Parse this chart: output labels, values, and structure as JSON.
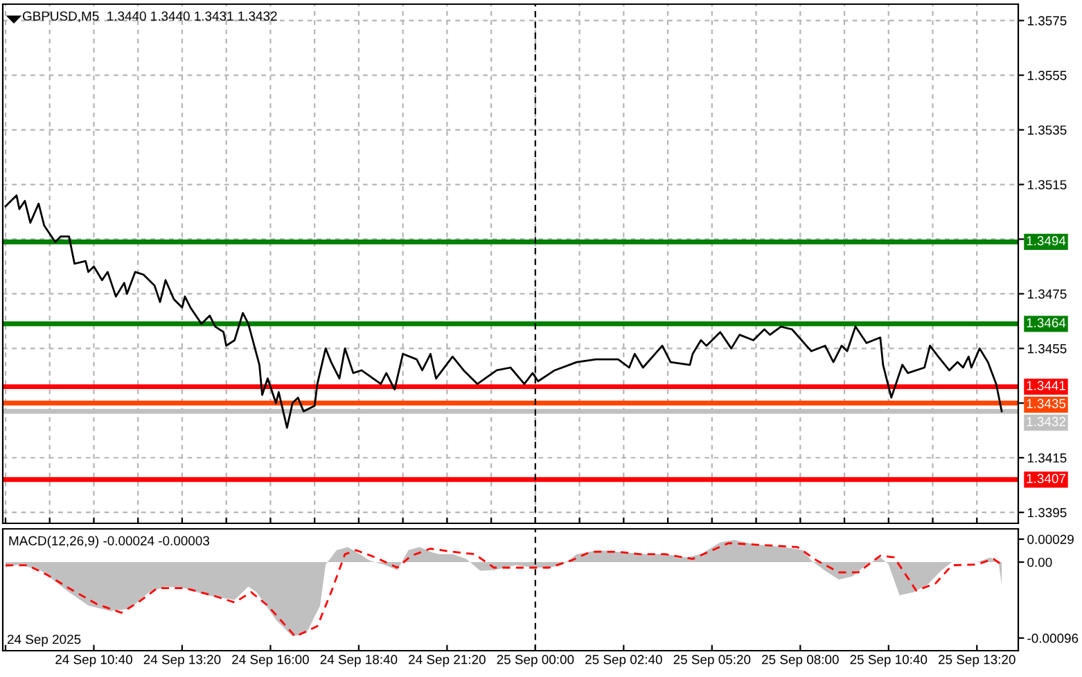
{
  "chart_data": [
    {
      "type": "line",
      "title": "GBPUSD,M5  1.3440 1.3440 1.3431 1.3432",
      "series": [
        {
          "color": "#000000",
          "x": [
            "2025-09-24T08:00",
            "2025-09-24T08:20",
            "2025-09-24T08:25",
            "2025-09-24T08:35",
            "2025-09-24T08:45",
            "2025-09-24T09:00",
            "2025-09-24T09:10",
            "2025-09-24T09:30",
            "2025-09-24T09:40",
            "2025-09-24T09:55",
            "2025-09-24T10:05",
            "2025-09-24T10:25",
            "2025-09-24T10:30",
            "2025-09-24T10:40",
            "2025-09-24T10:55",
            "2025-09-24T11:05",
            "2025-09-24T11:20",
            "2025-09-24T11:35",
            "2025-09-24T11:40",
            "2025-09-24T11:55",
            "2025-09-24T12:10",
            "2025-09-24T12:30",
            "2025-09-24T12:40",
            "2025-09-24T12:50",
            "2025-09-24T13:05",
            "2025-09-24T13:20",
            "2025-09-24T13:25",
            "2025-09-24T13:35",
            "2025-09-24T13:55",
            "2025-09-24T14:10",
            "2025-09-24T14:20",
            "2025-09-24T14:35",
            "2025-09-24T14:40",
            "2025-09-24T14:55",
            "2025-09-24T15:10",
            "2025-09-24T15:20",
            "2025-09-24T15:40",
            "2025-09-24T15:45",
            "2025-09-24T15:55",
            "2025-09-24T16:10",
            "2025-09-24T16:15",
            "2025-09-24T16:30",
            "2025-09-24T16:40",
            "2025-09-24T16:50",
            "2025-09-24T17:00",
            "2025-09-24T17:20",
            "2025-09-24T17:25",
            "2025-09-24T17:40",
            "2025-09-24T17:50",
            "2025-09-24T18:05",
            "2025-09-24T18:15",
            "2025-09-24T18:30",
            "2025-09-24T18:45",
            "2025-09-24T19:20",
            "2025-09-24T19:30",
            "2025-09-24T19:45",
            "2025-09-24T20:00",
            "2025-09-24T20:25",
            "2025-09-24T20:35",
            "2025-09-24T20:50",
            "2025-09-24T21:00",
            "2025-09-24T21:30",
            "2025-09-24T21:50",
            "2025-09-24T22:15",
            "2025-09-24T22:50",
            "2025-09-24T23:15",
            "2025-09-24T23:40",
            "2025-09-24T23:55",
            "2025-09-25T00:05",
            "2025-09-25T00:35",
            "2025-09-25T01:15",
            "2025-09-25T01:50",
            "2025-09-25T02:30",
            "2025-09-25T02:50",
            "2025-09-25T03:00",
            "2025-09-25T03:15",
            "2025-09-25T03:50",
            "2025-09-25T04:05",
            "2025-09-25T04:40",
            "2025-09-25T04:45",
            "2025-09-25T05:00",
            "2025-09-25T05:10",
            "2025-09-25T05:35",
            "2025-09-25T05:55",
            "2025-09-25T06:10",
            "2025-09-25T06:35",
            "2025-09-25T06:55",
            "2025-09-25T07:05",
            "2025-09-25T07:25",
            "2025-09-25T07:45",
            "2025-09-25T08:20",
            "2025-09-25T08:45",
            "2025-09-25T09:00",
            "2025-09-25T09:15",
            "2025-09-25T09:25",
            "2025-09-25T09:40",
            "2025-09-25T10:00",
            "2025-09-25T10:25",
            "2025-09-25T10:30",
            "2025-09-25T10:45",
            "2025-09-25T11:05",
            "2025-09-25T11:15",
            "2025-09-25T11:45",
            "2025-09-25T11:55",
            "2025-09-25T12:10",
            "2025-09-25T12:30",
            "2025-09-25T12:45",
            "2025-09-25T12:55",
            "2025-09-25T13:05",
            "2025-09-25T13:10",
            "2025-09-25T13:25",
            "2025-09-25T13:40",
            "2025-09-25T13:55",
            "2025-09-25T14:05"
          ],
          "values": [
            1.3507,
            1.3511,
            1.3506,
            1.3509,
            1.3501,
            1.3508,
            1.35,
            1.3494,
            1.3496,
            1.3496,
            1.3486,
            1.3487,
            1.3483,
            1.3485,
            1.348,
            1.3483,
            1.3474,
            1.3479,
            1.3475,
            1.3483,
            1.3482,
            1.3478,
            1.3472,
            1.348,
            1.3473,
            1.347,
            1.3474,
            1.347,
            1.3464,
            1.3467,
            1.3463,
            1.3461,
            1.3456,
            1.3458,
            1.3468,
            1.3464,
            1.3449,
            1.3438,
            1.3444,
            1.3435,
            1.3439,
            1.3426,
            1.3435,
            1.3437,
            1.3432,
            1.3434,
            1.3442,
            1.3455,
            1.345,
            1.3444,
            1.3455,
            1.3446,
            1.3447,
            1.3442,
            1.3446,
            1.344,
            1.3453,
            1.3451,
            1.3447,
            1.3453,
            1.3444,
            1.3452,
            1.3447,
            1.3442,
            1.3447,
            1.3448,
            1.3442,
            1.3446,
            1.3443,
            1.3447,
            1.345,
            1.3451,
            1.3451,
            1.3448,
            1.3453,
            1.3448,
            1.3456,
            1.345,
            1.3449,
            1.3453,
            1.3458,
            1.3456,
            1.3461,
            1.3455,
            1.346,
            1.3458,
            1.3462,
            1.346,
            1.3463,
            1.3462,
            1.3454,
            1.3456,
            1.345,
            1.3456,
            1.3454,
            1.3463,
            1.3457,
            1.3459,
            1.3449,
            1.3437,
            1.3449,
            1.3446,
            1.3448,
            1.3456,
            1.3452,
            1.3447,
            1.345,
            1.3448,
            1.3452,
            1.3448,
            1.3455,
            1.345,
            1.3442,
            1.3432
          ]
        }
      ],
      "xlim": [
        "2025-09-24T07:55",
        "2025-09-25T14:35"
      ],
      "xticks": [
        {
          "value": "2025-09-24T08:00",
          "label": null
        },
        {
          "value": "2025-09-24T09:20",
          "label": null
        },
        {
          "value": "2025-09-24T10:40",
          "label": null
        },
        {
          "value": "2025-09-24T12:00",
          "label": null
        },
        {
          "value": "2025-09-24T13:20",
          "label": null
        },
        {
          "value": "2025-09-24T14:40",
          "label": null
        },
        {
          "value": "2025-09-24T16:00",
          "label": null
        },
        {
          "value": "2025-09-24T17:20",
          "label": null
        },
        {
          "value": "2025-09-24T18:40",
          "label": null
        },
        {
          "value": "2025-09-24T20:00",
          "label": null
        },
        {
          "value": "2025-09-24T21:20",
          "label": null
        },
        {
          "value": "2025-09-24T22:40",
          "label": null
        },
        {
          "value": "2025-09-25T00:00",
          "label": null
        },
        {
          "value": "2025-09-25T01:20",
          "label": null
        },
        {
          "value": "2025-09-25T02:40",
          "label": null
        },
        {
          "value": "2025-09-25T04:00",
          "label": null
        },
        {
          "value": "2025-09-25T05:20",
          "label": null
        },
        {
          "value": "2025-09-25T06:40",
          "label": null
        },
        {
          "value": "2025-09-25T08:00",
          "label": null
        },
        {
          "value": "2025-09-25T09:20",
          "label": null
        },
        {
          "value": "2025-09-25T10:40",
          "label": null
        },
        {
          "value": "2025-09-25T12:00",
          "label": null
        },
        {
          "value": "2025-09-25T13:20",
          "label": null
        }
      ],
      "ylim": [
        1.3391,
        1.3581
      ],
      "yticks": [
        1.3395,
        1.3415,
        {
          "value": 1.3435,
          "label": null
        },
        1.3455,
        1.3475,
        {
          "value": 1.3495,
          "label": null
        },
        1.3515,
        1.3535,
        1.3555,
        1.3575
      ],
      "tick_labels": "y",
      "grid": true,
      "ref_lines": [
        {
          "axis": "y",
          "value": 1.3494,
          "label": "1.3494",
          "color": "#008000"
        },
        {
          "axis": "y",
          "value": 1.3464,
          "label": "1.3464",
          "color": "#008000"
        },
        {
          "axis": "y",
          "value": 1.3441,
          "label": "1.3441",
          "color": "#ff0000"
        },
        {
          "axis": "y",
          "value": 1.3435,
          "label": "1.3435",
          "color": "#ff4500"
        },
        {
          "axis": "y",
          "value": 1.3432,
          "label": "1.3432",
          "color": "#c0c0c0"
        },
        {
          "axis": "y",
          "value": 1.3407,
          "label": "1.3407",
          "color": "#ff0000"
        },
        {
          "axis": "x",
          "value": "2025-09-25T00:00",
          "color": "#000000",
          "line_style": "dashed"
        }
      ]
    },
    {
      "type": "area",
      "title": "MACD(12,26,9) -0.00024 -0.00003",
      "series": [
        {
          "type": "area",
          "color": "#c0c0c0",
          "x": [
            "2025-09-24T08:00",
            "2025-09-24T08:25",
            "2025-09-24T09:05",
            "2025-09-24T09:55",
            "2025-09-24T10:30",
            "2025-09-24T11:10",
            "2025-09-24T11:45",
            "2025-09-24T12:20",
            "2025-09-24T12:50",
            "2025-09-24T13:25",
            "2025-09-24T14:05",
            "2025-09-24T14:55",
            "2025-09-24T15:20",
            "2025-09-24T15:35",
            "2025-09-24T16:10",
            "2025-09-24T16:40",
            "2025-09-24T17:05",
            "2025-09-24T17:30",
            "2025-09-24T17:40",
            "2025-09-24T18:00",
            "2025-09-24T18:20",
            "2025-09-24T18:35",
            "2025-09-24T19:00",
            "2025-09-24T19:25",
            "2025-09-24T19:50",
            "2025-09-24T20:10",
            "2025-09-24T20:30",
            "2025-09-24T20:50",
            "2025-09-24T21:05",
            "2025-09-24T21:30",
            "2025-09-24T21:55",
            "2025-09-24T22:20",
            "2025-09-24T22:45",
            "2025-09-24T23:25",
            "2025-09-25T00:00",
            "2025-09-25T00:25",
            "2025-09-25T00:50",
            "2025-09-25T01:15",
            "2025-09-25T01:55",
            "2025-09-25T02:30",
            "2025-09-25T03:20",
            "2025-09-25T03:55",
            "2025-09-25T04:35",
            "2025-09-25T05:00",
            "2025-09-25T05:35",
            "2025-09-25T06:00",
            "2025-09-25T06:40",
            "2025-09-25T07:30",
            "2025-09-25T08:05",
            "2025-09-25T08:20",
            "2025-09-25T08:45",
            "2025-09-25T09:10",
            "2025-09-25T09:35",
            "2025-09-25T10:00",
            "2025-09-25T10:25",
            "2025-09-25T10:40",
            "2025-09-25T11:00",
            "2025-09-25T11:25",
            "2025-09-25T11:50",
            "2025-09-25T12:15",
            "2025-09-25T12:35",
            "2025-09-25T13:20",
            "2025-09-25T13:45",
            "2025-09-25T14:00",
            "2025-09-25T14:05"
          ],
          "values": [
            -7e-05,
            -3e-05,
            -0.00011,
            -0.00038,
            -0.00055,
            -0.00062,
            -0.00059,
            -0.00038,
            -0.00031,
            -0.00033,
            -0.00042,
            -0.00048,
            -0.00031,
            -0.00038,
            -0.00073,
            -0.00094,
            -0.0009,
            -0.00055,
            -3e-05,
            0.00015,
            0.00019,
            0.00013,
            2e-05,
            -3e-05,
            -0.0001,
            0.00015,
            0.00019,
            0.00013,
            0.0001,
            0.0001,
            4e-05,
            -0.00011,
            -0.0001,
            -4e-05,
            -7e-05,
            -7e-05,
            -3e-05,
            0.0001,
            0.00015,
            0.00013,
            0.0001,
            0.0001,
            6e-05,
            0.0001,
            0.00025,
            0.00028,
            0.00022,
            0.00019,
            0.00015,
            2e-05,
            -0.00011,
            -0.00022,
            -0.00018,
            -3e-05,
            6e-05,
            -3e-05,
            -0.00042,
            -0.00038,
            -0.00029,
            -0.00011,
            0,
            0,
            6e-05,
            -3e-05,
            -0.00029
          ]
        },
        {
          "type": "line",
          "color": "#ff0000",
          "line_style": "dashed",
          "x": [
            "2025-09-24T08:00",
            "2025-09-24T08:40",
            "2025-09-24T09:15",
            "2025-09-24T09:55",
            "2025-09-24T10:45",
            "2025-09-24T11:30",
            "2025-09-24T12:00",
            "2025-09-24T12:35",
            "2025-09-24T13:25",
            "2025-09-24T14:15",
            "2025-09-24T14:55",
            "2025-09-24T15:25",
            "2025-09-24T15:55",
            "2025-09-24T16:45",
            "2025-09-24T17:25",
            "2025-09-24T17:50",
            "2025-09-24T18:15",
            "2025-09-24T18:35",
            "2025-09-24T19:10",
            "2025-09-24T19:50",
            "2025-09-24T20:15",
            "2025-09-24T20:50",
            "2025-09-24T21:30",
            "2025-09-24T22:10",
            "2025-09-24T22:45",
            "2025-09-24T23:35",
            "2025-09-25T00:25",
            "2025-09-25T01:05",
            "2025-09-25T01:40",
            "2025-09-25T02:30",
            "2025-09-25T03:10",
            "2025-09-25T03:55",
            "2025-09-25T04:45",
            "2025-09-25T05:50",
            "2025-09-25T06:40",
            "2025-09-25T07:55",
            "2025-09-25T08:30",
            "2025-09-25T09:10",
            "2025-09-25T09:45",
            "2025-09-25T10:25",
            "2025-09-25T10:50",
            "2025-09-25T11:15",
            "2025-09-25T11:30",
            "2025-09-25T12:05",
            "2025-09-25T12:35",
            "2025-09-25T13:20",
            "2025-09-25T13:50",
            "2025-09-25T14:05"
          ],
          "values": [
            -4e-05,
            -4e-05,
            -0.00016,
            -0.00033,
            -0.00053,
            -0.00064,
            -0.00051,
            -0.00033,
            -0.00033,
            -0.00042,
            -0.00051,
            -0.00038,
            -0.00055,
            -0.00094,
            -0.00081,
            -0.00038,
            0.0001,
            0.00015,
            6e-05,
            -7e-05,
            8e-05,
            0.00017,
            0.00013,
            0.0001,
            -7e-05,
            -7e-05,
            -7e-05,
            2e-05,
            0.00013,
            0.00013,
            0.0001,
            0.0001,
            4e-05,
            0.00024,
            0.00022,
            0.00019,
            2e-05,
            -0.00013,
            -0.00013,
            8e-05,
            6e-05,
            -0.0002,
            -0.00036,
            -0.00027,
            -4e-05,
            -3e-05,
            4e-05,
            -3e-05
          ]
        }
      ],
      "xlim": [
        "2025-09-24T07:55",
        "2025-09-25T14:35"
      ],
      "xticks": [
        {
          "value": "2025-09-24T08:00",
          "label": null
        },
        {
          "value": "2025-09-24T10:40",
          "label": "24 Sep 10:40"
        },
        {
          "value": "2025-09-24T13:20",
          "label": "24 Sep 13:20"
        },
        {
          "value": "2025-09-24T16:00",
          "label": "24 Sep 16:00"
        },
        {
          "value": "2025-09-24T18:40",
          "label": "24 Sep 18:40"
        },
        {
          "value": "2025-09-24T21:20",
          "label": "24 Sep 21:20"
        },
        {
          "value": "2025-09-25T00:00",
          "label": "25 Sep 00:00"
        },
        {
          "value": "2025-09-25T02:40",
          "label": "25 Sep 02:40"
        },
        {
          "value": "2025-09-25T05:20",
          "label": "25 Sep 05:20"
        },
        {
          "value": "2025-09-25T08:00",
          "label": "25 Sep 08:00"
        },
        {
          "value": "2025-09-25T10:40",
          "label": "25 Sep 10:40"
        },
        {
          "value": "2025-09-25T13:20",
          "label": "25 Sep 13:20"
        }
      ],
      "ylim": [
        -0.00112,
        0.00042
      ],
      "yticks": [
        -0.00096,
        {
          "value": 0,
          "label": "0.00"
        },
        0.00029
      ],
      "annotations": [
        "24 Sep 2025"
      ],
      "ref_lines": [
        {
          "axis": "x",
          "value": "2025-09-25T00:00",
          "color": "#000000",
          "line_style": "dashed"
        }
      ]
    }
  ]
}
